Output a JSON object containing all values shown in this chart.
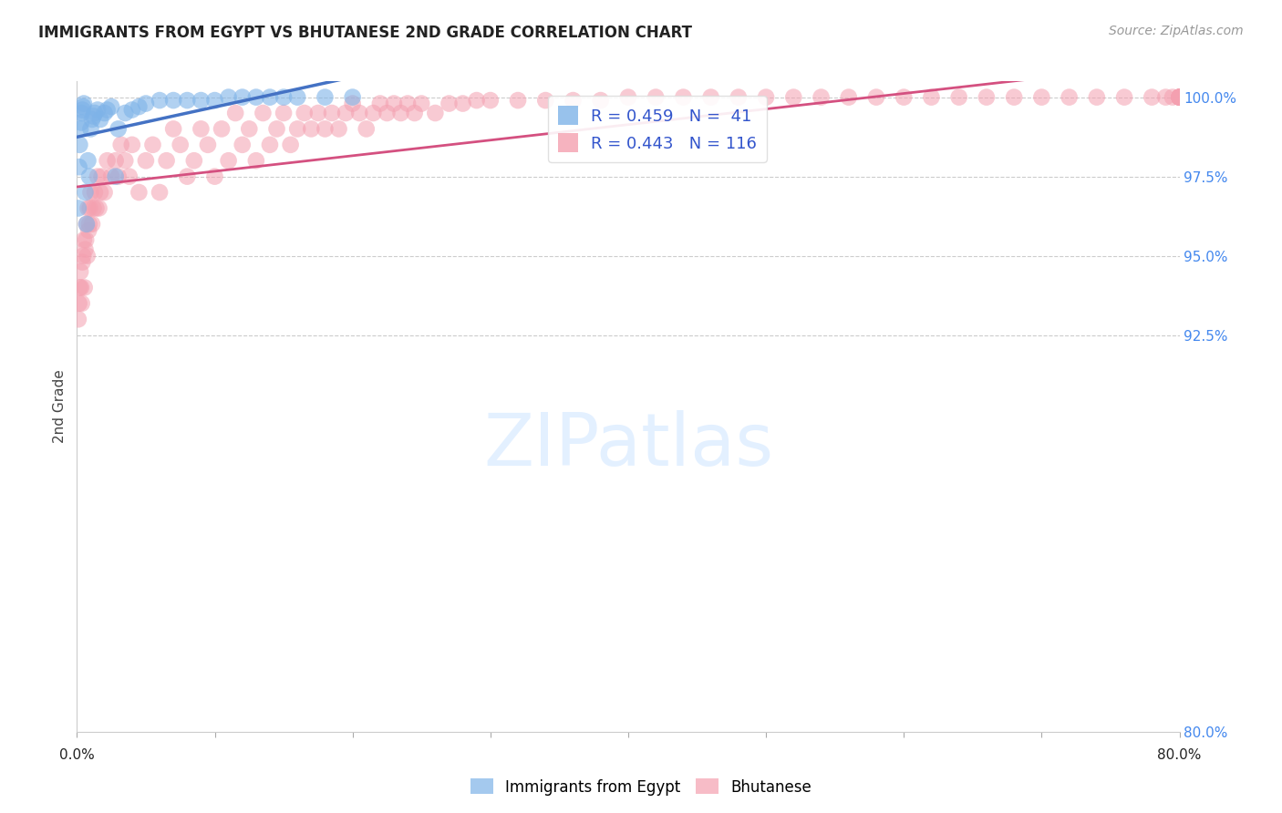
{
  "title": "IMMIGRANTS FROM EGYPT VS BHUTANESE 2ND GRADE CORRELATION CHART",
  "source": "Source: ZipAtlas.com",
  "ylabel": "2nd Grade",
  "egypt_R": 0.459,
  "egypt_N": 41,
  "bhutan_R": 0.443,
  "bhutan_N": 116,
  "egypt_color": "#7EB3E8",
  "bhutan_color": "#F4A0B0",
  "egypt_line_color": "#4472C4",
  "bhutan_line_color": "#D45080",
  "legend_egypt": "Immigrants from Egypt",
  "legend_bhutan": "Bhutanese",
  "egypt_x": [
    0.1,
    0.15,
    0.2,
    0.25,
    0.3,
    0.35,
    0.4,
    0.45,
    0.5,
    0.6,
    0.7,
    0.8,
    0.9,
    1.0,
    1.1,
    1.2,
    1.3,
    1.5,
    1.7,
    2.0,
    2.2,
    2.5,
    2.8,
    3.0,
    3.5,
    4.0,
    4.5,
    5.0,
    6.0,
    7.0,
    8.0,
    9.0,
    10.0,
    11.0,
    12.0,
    13.0,
    14.0,
    15.0,
    16.0,
    18.0,
    20.0
  ],
  "egypt_y": [
    96.5,
    97.8,
    98.5,
    99.0,
    99.2,
    99.5,
    99.6,
    99.7,
    99.8,
    97.0,
    96.0,
    98.0,
    97.5,
    99.0,
    99.3,
    99.4,
    99.5,
    99.6,
    99.3,
    99.5,
    99.6,
    99.7,
    97.5,
    99.0,
    99.5,
    99.6,
    99.7,
    99.8,
    99.9,
    99.9,
    99.9,
    99.9,
    99.9,
    100.0,
    100.0,
    100.0,
    100.0,
    100.0,
    100.0,
    100.0,
    100.0
  ],
  "bhutan_x": [
    0.1,
    0.15,
    0.2,
    0.25,
    0.3,
    0.35,
    0.4,
    0.45,
    0.5,
    0.55,
    0.6,
    0.65,
    0.7,
    0.75,
    0.8,
    0.85,
    0.9,
    0.95,
    1.0,
    1.1,
    1.2,
    1.3,
    1.4,
    1.5,
    1.6,
    1.7,
    1.8,
    2.0,
    2.2,
    2.5,
    2.8,
    3.0,
    3.2,
    3.5,
    3.8,
    4.0,
    4.5,
    5.0,
    5.5,
    6.0,
    6.5,
    7.0,
    7.5,
    8.0,
    8.5,
    9.0,
    9.5,
    10.0,
    10.5,
    11.0,
    11.5,
    12.0,
    12.5,
    13.0,
    13.5,
    14.0,
    14.5,
    15.0,
    15.5,
    16.0,
    16.5,
    17.0,
    17.5,
    18.0,
    18.5,
    19.0,
    19.5,
    20.0,
    20.5,
    21.0,
    21.5,
    22.0,
    22.5,
    23.0,
    23.5,
    24.0,
    24.5,
    25.0,
    26.0,
    27.0,
    28.0,
    29.0,
    30.0,
    32.0,
    34.0,
    36.0,
    38.0,
    40.0,
    42.0,
    44.0,
    46.0,
    48.0,
    50.0,
    52.0,
    54.0,
    56.0,
    58.0,
    60.0,
    62.0,
    64.0,
    66.0,
    68.0,
    70.0,
    72.0,
    74.0,
    76.0,
    78.0,
    79.0,
    79.5,
    80.0,
    80.0,
    80.0,
    80.0,
    80.0,
    80.0,
    80.0
  ],
  "bhutan_y": [
    93.0,
    93.5,
    94.0,
    94.5,
    94.0,
    93.5,
    94.8,
    95.0,
    95.5,
    94.0,
    95.2,
    95.5,
    96.0,
    95.0,
    96.5,
    95.8,
    96.0,
    96.5,
    97.0,
    96.0,
    96.5,
    97.0,
    96.5,
    97.5,
    96.5,
    97.0,
    97.5,
    97.0,
    98.0,
    97.5,
    98.0,
    97.5,
    98.5,
    98.0,
    97.5,
    98.5,
    97.0,
    98.0,
    98.5,
    97.0,
    98.0,
    99.0,
    98.5,
    97.5,
    98.0,
    99.0,
    98.5,
    97.5,
    99.0,
    98.0,
    99.5,
    98.5,
    99.0,
    98.0,
    99.5,
    98.5,
    99.0,
    99.5,
    98.5,
    99.0,
    99.5,
    99.0,
    99.5,
    99.0,
    99.5,
    99.0,
    99.5,
    99.8,
    99.5,
    99.0,
    99.5,
    99.8,
    99.5,
    99.8,
    99.5,
    99.8,
    99.5,
    99.8,
    99.5,
    99.8,
    99.8,
    99.9,
    99.9,
    99.9,
    99.9,
    99.9,
    99.9,
    100.0,
    100.0,
    100.0,
    100.0,
    100.0,
    100.0,
    100.0,
    100.0,
    100.0,
    100.0,
    100.0,
    100.0,
    100.0,
    100.0,
    100.0,
    100.0,
    100.0,
    100.0,
    100.0,
    100.0,
    100.0,
    100.0,
    100.0,
    100.0,
    100.0,
    100.0,
    100.0,
    100.0,
    100.0
  ],
  "xlim": [
    0.0,
    80.0
  ],
  "ylim": [
    80.0,
    100.5
  ],
  "xticks": [
    0.0,
    10.0,
    20.0,
    30.0,
    40.0,
    50.0,
    60.0,
    70.0,
    80.0
  ],
  "yticks_right": [
    100.0,
    97.5,
    95.0,
    92.5,
    80.0
  ],
  "ytick_right_labels": [
    "100.0%",
    "97.5%",
    "95.0%",
    "92.5%",
    "80.0%"
  ],
  "grid_yticks": [
    100.0,
    97.5,
    95.0,
    92.5
  ],
  "grid_color": "#CCCCCC",
  "background_color": "#FFFFFF"
}
